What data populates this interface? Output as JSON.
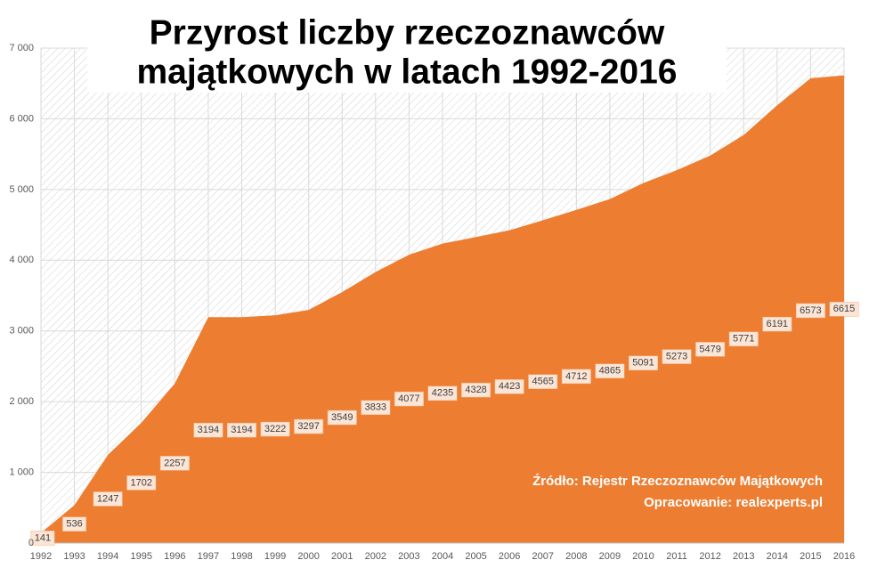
{
  "chart_data": {
    "type": "area",
    "title": [
      "Przyrost liczby rzeczoznawców",
      "majątkowych w latach 1992-2016"
    ],
    "annotations": [
      "Źródło: Rejestr Rzeczoznawców Majątkowych",
      "Opracowanie: realexperts.pl"
    ],
    "x": [
      1992,
      1993,
      1994,
      1995,
      1996,
      1997,
      1998,
      1999,
      2000,
      2001,
      2002,
      2003,
      2004,
      2005,
      2006,
      2007,
      2008,
      2009,
      2010,
      2011,
      2012,
      2013,
      2014,
      2015,
      2016
    ],
    "values": [
      141,
      536,
      1247,
      1702,
      2257,
      3194,
      3194,
      3222,
      3297,
      3549,
      3833,
      4077,
      4235,
      4328,
      4423,
      4565,
      4712,
      4865,
      5091,
      5273,
      5479,
      5771,
      6191,
      6573,
      6615
    ],
    "color": "#ed7d31",
    "xlim": [
      1992,
      2016
    ],
    "ylim": [
      0,
      7000
    ],
    "yticks": [
      0,
      {
        "value": 1000,
        "label": "1 000"
      },
      {
        "value": 2000,
        "label": "2 000"
      },
      {
        "value": 3000,
        "label": "3 000"
      },
      {
        "value": 4000,
        "label": "4 000"
      },
      {
        "value": 5000,
        "label": "5 000"
      },
      {
        "value": 6000,
        "label": "6 000"
      },
      {
        "value": 7000,
        "label": "7 000"
      }
    ],
    "grid": true
  }
}
